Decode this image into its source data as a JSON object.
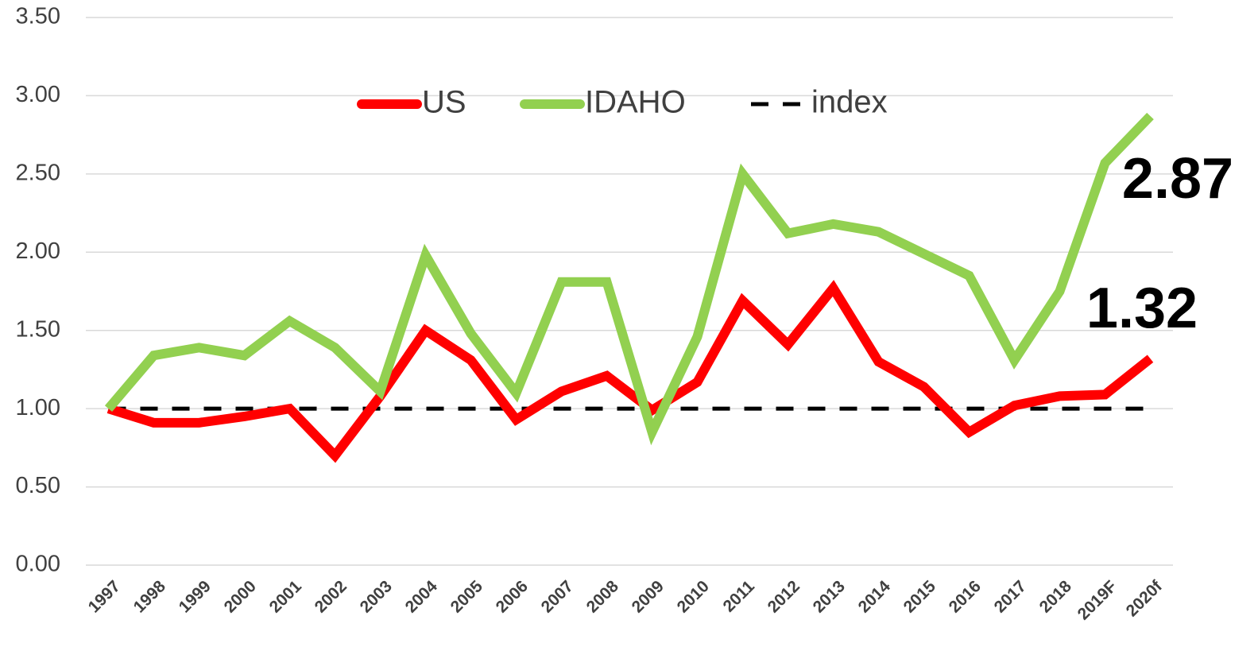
{
  "chart_data": {
    "type": "line",
    "categories": [
      "1997",
      "1998",
      "1999",
      "2000",
      "2001",
      "2002",
      "2003",
      "2004",
      "2005",
      "2006",
      "2007",
      "2008",
      "2009",
      "2010",
      "2011",
      "2012",
      "2013",
      "2014",
      "2015",
      "2016",
      "2017",
      "2018",
      "2019F",
      "2020f"
    ],
    "series": [
      {
        "name": "US",
        "color": "#ff0000",
        "values": [
          1.0,
          0.91,
          0.91,
          0.95,
          1.0,
          0.7,
          1.08,
          1.5,
          1.31,
          0.93,
          1.11,
          1.21,
          0.99,
          1.17,
          1.69,
          1.41,
          1.77,
          1.3,
          1.14,
          0.85,
          1.02,
          1.08,
          1.09,
          1.32
        ]
      },
      {
        "name": "IDAHO",
        "color": "#92d050",
        "values": [
          1.0,
          1.34,
          1.39,
          1.34,
          1.56,
          1.39,
          1.11,
          1.98,
          1.48,
          1.1,
          1.81,
          1.81,
          0.85,
          1.46,
          2.5,
          2.12,
          2.18,
          2.13,
          1.99,
          1.85,
          1.31,
          1.75,
          2.57,
          2.87
        ]
      },
      {
        "name": "index",
        "color": "#000000",
        "dashed": true,
        "values": [
          1,
          1,
          1,
          1,
          1,
          1,
          1,
          1,
          1,
          1,
          1,
          1,
          1,
          1,
          1,
          1,
          1,
          1,
          1,
          1,
          1,
          1,
          1,
          1
        ]
      }
    ],
    "ylim": [
      0,
      3.5
    ],
    "yticks": [
      {
        "value": 0,
        "label": "0.00"
      },
      {
        "value": 0.5,
        "label": "0.50"
      },
      {
        "value": 1,
        "label": "1.00"
      },
      {
        "value": 1.5,
        "label": "1.50"
      },
      {
        "value": 2,
        "label": "2.00"
      },
      {
        "value": 2.5,
        "label": "2.50"
      },
      {
        "value": 3,
        "label": "3.00"
      },
      {
        "value": 3.5,
        "label": "3.50"
      }
    ],
    "grid": true,
    "legend": "top"
  }
}
